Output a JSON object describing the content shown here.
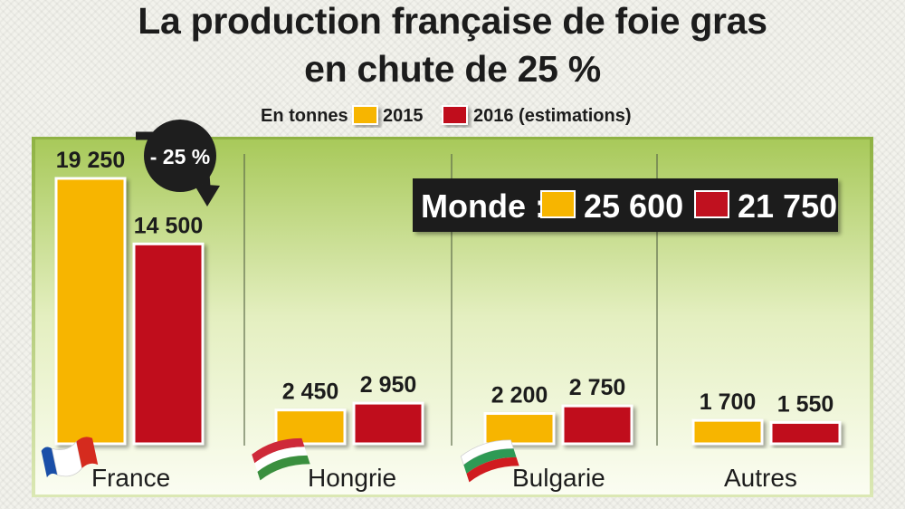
{
  "chart_data": {
    "type": "bar",
    "title": "La production française de foie gras",
    "title_line2": "en chute de 25 %",
    "unit_label": "En tonnes",
    "categories": [
      "France",
      "Hongrie",
      "Bulgarie",
      "Autres"
    ],
    "series": [
      {
        "name": "2015",
        "color": "#f7b500",
        "values": [
          19250,
          2450,
          2200,
          1700
        ],
        "labels": [
          "19 250",
          "2 450",
          "2 200",
          "1 700"
        ]
      },
      {
        "name": "2016 (estimations)",
        "color": "#c0111f",
        "values": [
          14500,
          2950,
          2750,
          1550
        ],
        "labels": [
          "14 500",
          "2 950",
          "2 750",
          "1 550"
        ]
      }
    ],
    "ylim": [
      0,
      19250
    ],
    "annotation": "- 25 %",
    "world": {
      "label": "Monde :",
      "value_2015": "25 600",
      "value_2016": "21 750"
    },
    "flags": [
      "france-flag-icon",
      "hungary-flag-icon",
      "bulgaria-flag-icon"
    ],
    "colors": {
      "plot_top": "#a8c95a",
      "plot_bottom": "#fbfdf2",
      "badge": "#1e1e1e"
    }
  }
}
